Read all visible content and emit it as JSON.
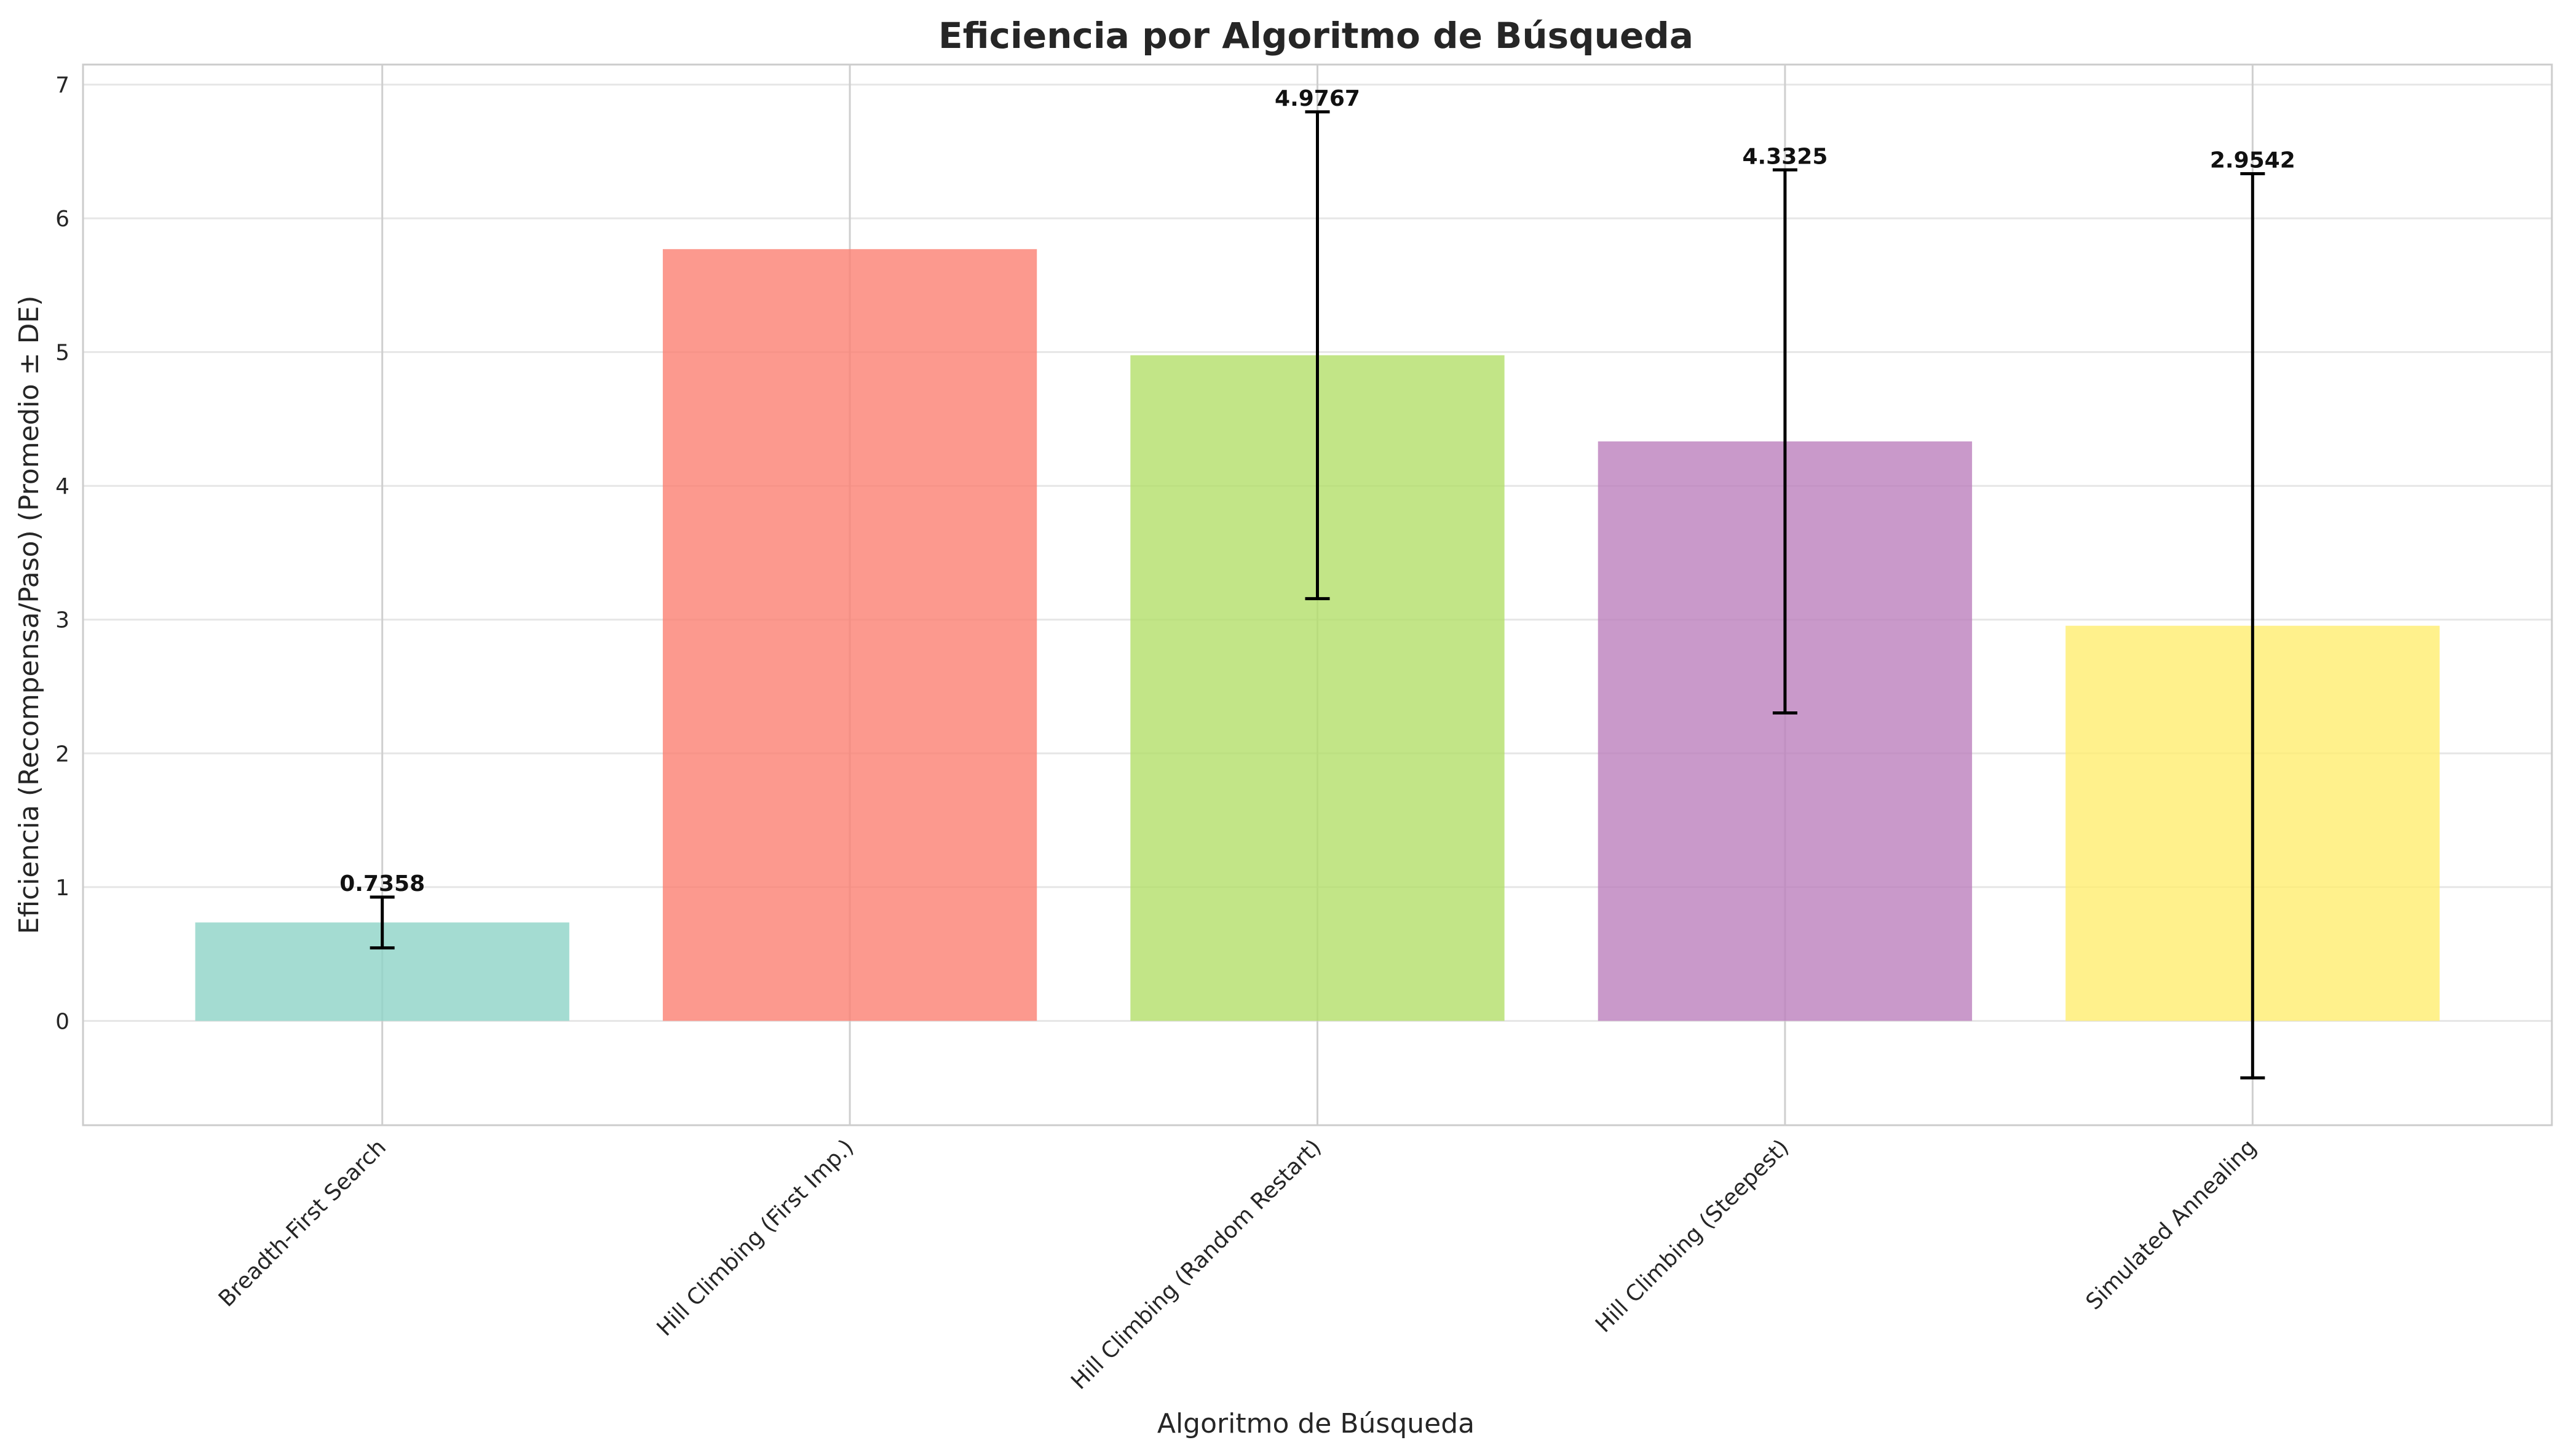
{
  "chart_data": {
    "type": "bar",
    "title": "Eficiencia por Algoritmo de Búsqueda",
    "xlabel": "Algoritmo de Búsqueda",
    "ylabel": "Eficiencia (Recompensa/Paso) (Promedio ± DE)",
    "ylim": [
      -0.78,
      7.15
    ],
    "yticks": [
      0,
      1,
      2,
      3,
      4,
      5,
      6,
      7
    ],
    "grid": true,
    "categories": [
      "Breadth-First Search",
      "Hill Climbing (First Imp.)",
      "Hill Climbing (Random Restart)",
      "Hill Climbing (Steepest)",
      "Simulated Annealing"
    ],
    "values": [
      0.7358,
      5.77,
      4.9767,
      4.3325,
      2.9542
    ],
    "error": [
      0.19,
      null,
      1.82,
      2.03,
      3.38
    ],
    "value_labels": [
      "0.7358",
      "",
      "4.9767",
      "4.3325",
      "2.9542"
    ],
    "colors": [
      "#8dd3c7",
      "#fb8072",
      "#b3de69",
      "#bc80bd",
      "#ffed6f"
    ]
  }
}
